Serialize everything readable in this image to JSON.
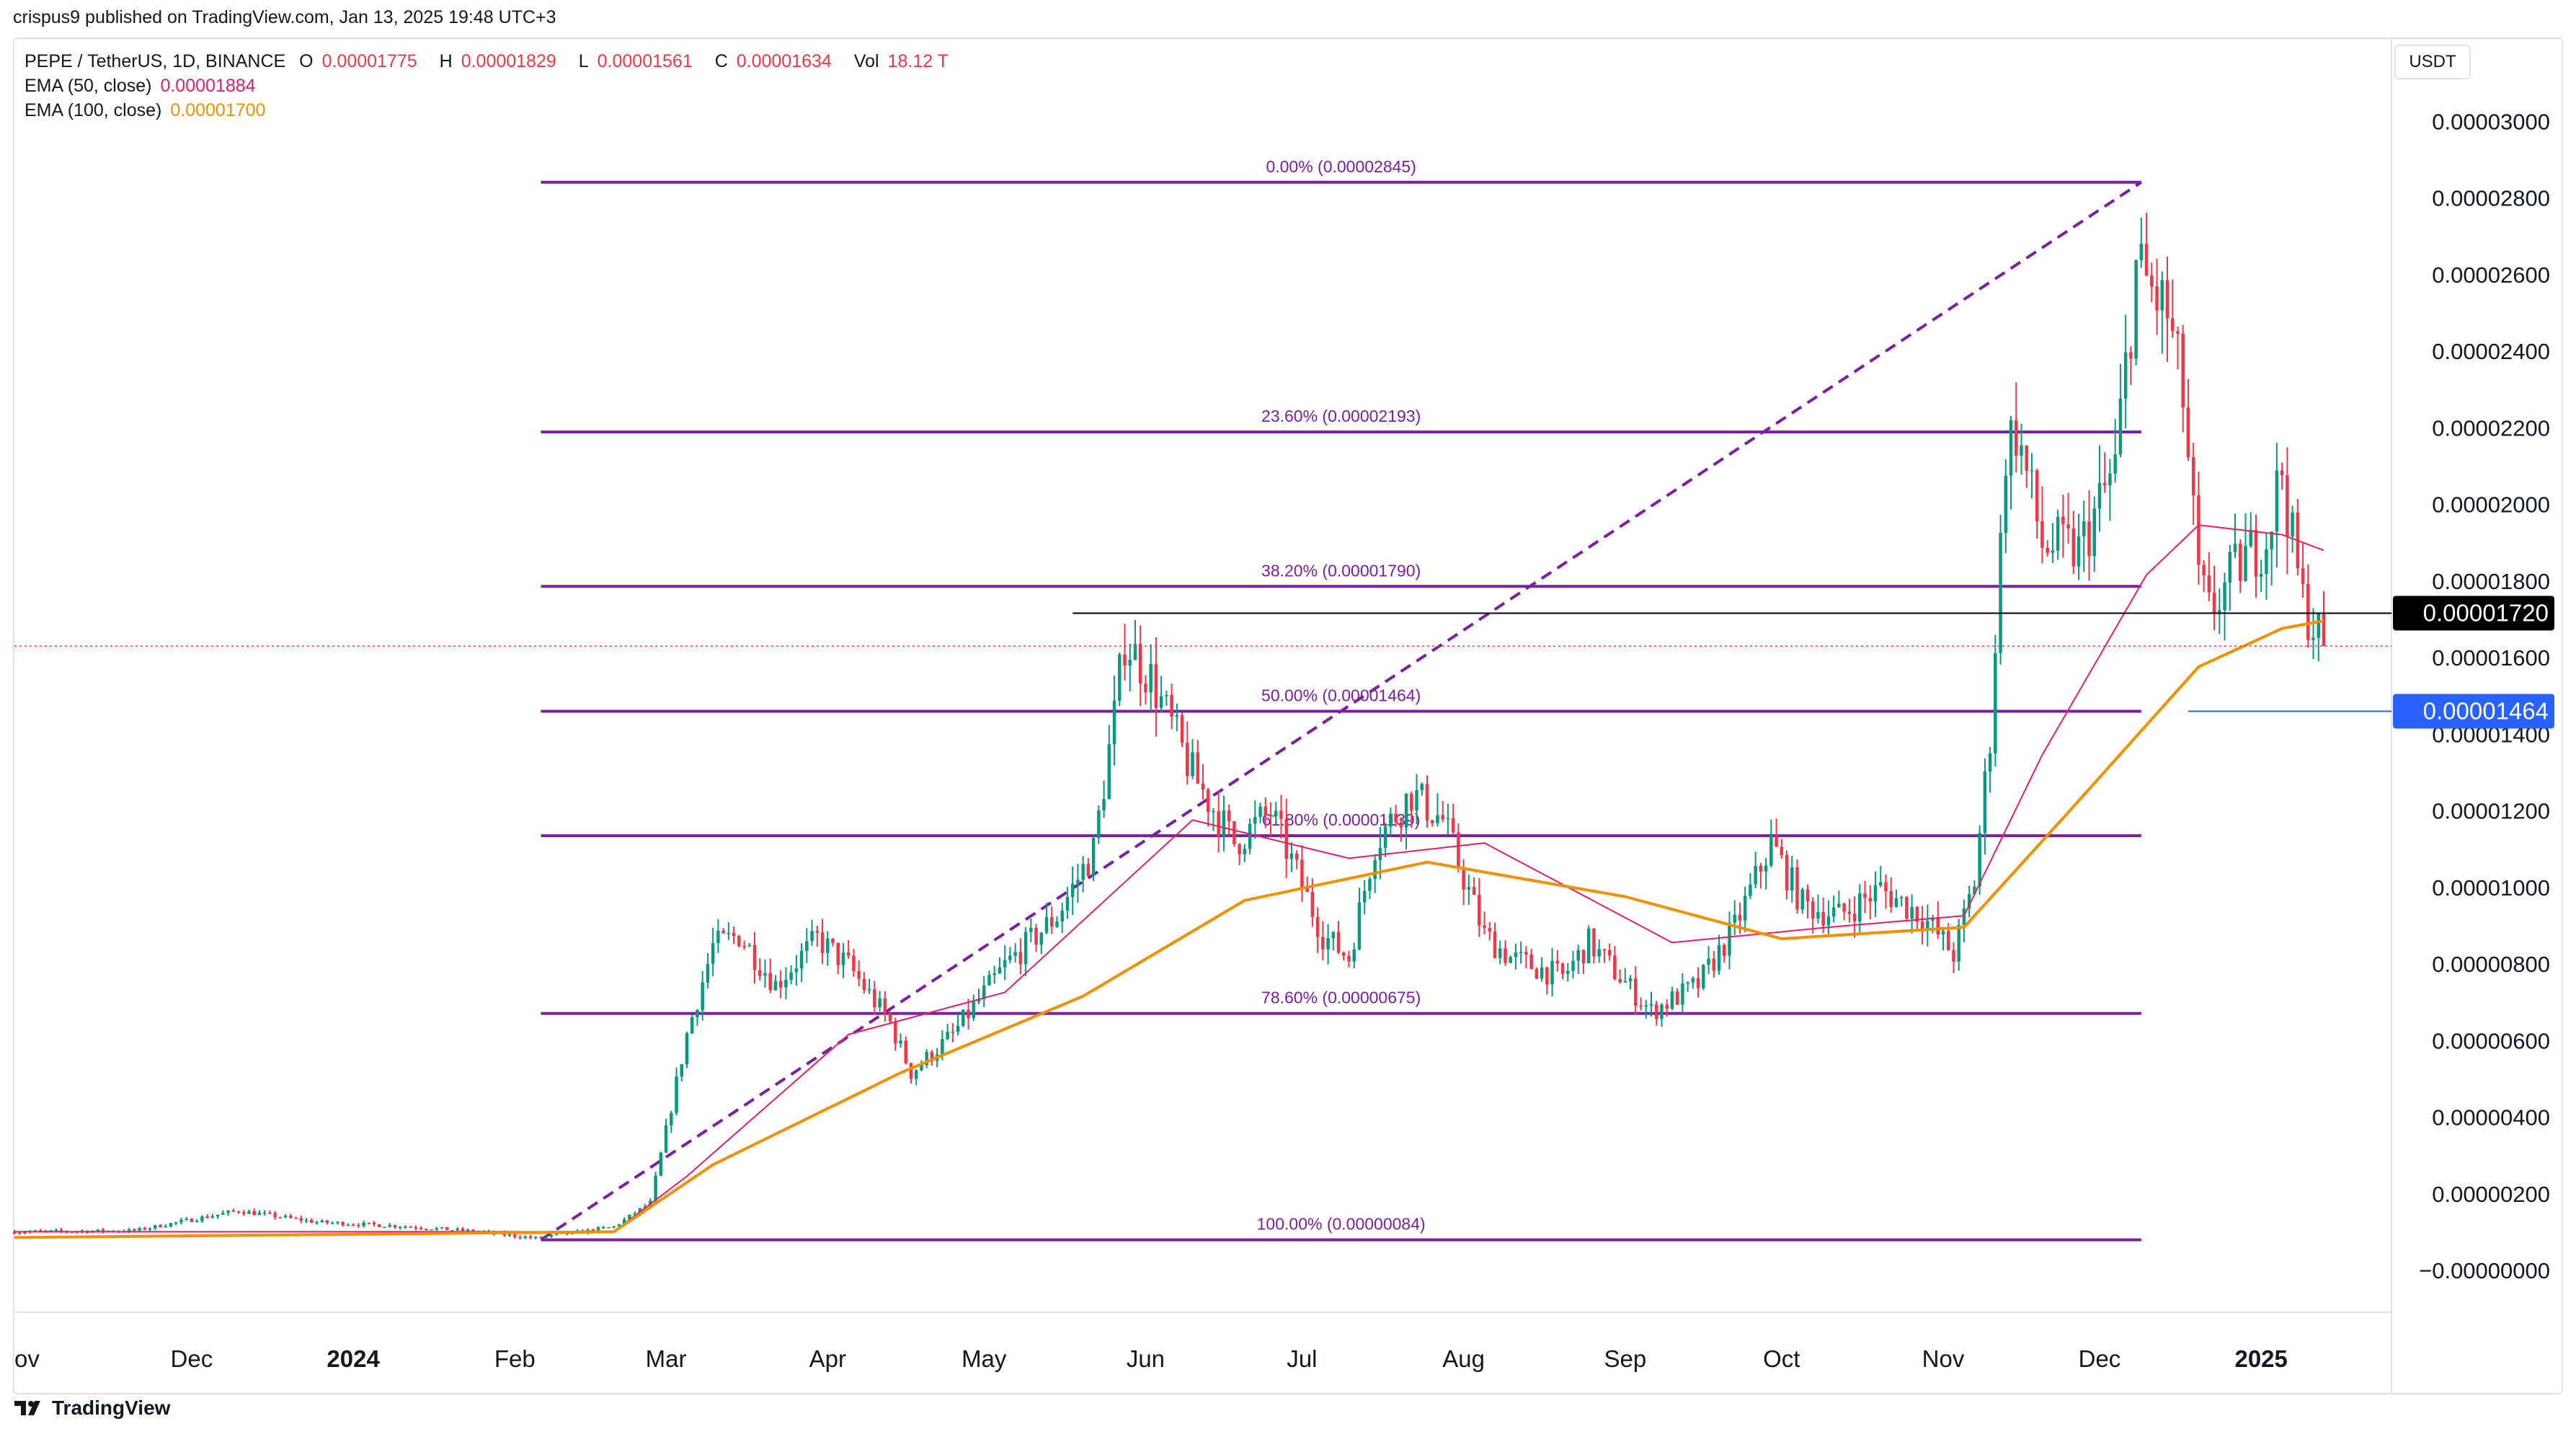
{
  "header": {
    "published": "crispus9 published on TradingView.com, Jan 13, 2025 19:48 UTC+3"
  },
  "legend": {
    "symbol": "PEPE / TetherUS, 1D, BINANCE",
    "o_label": "O",
    "o_value": "0.00001775",
    "h_label": "H",
    "h_value": "0.00001829",
    "l_label": "L",
    "l_value": "0.00001561",
    "c_label": "C",
    "c_value": "0.00001634",
    "vol_label": "Vol",
    "vol_value": "18.12 T",
    "ema50_label": "EMA (50, close)",
    "ema50_value": "0.00001884",
    "ema100_label": "EMA (100, close)",
    "ema100_value": "0.00001700"
  },
  "currency_label": "USDT",
  "footer": {
    "brand": "TradingView"
  },
  "colors": {
    "up": "#089981",
    "down": "#f23645",
    "fib": "#7b1fa2",
    "ema50": "#e91e63",
    "ema100": "#f29100",
    "price_tag": "#000000",
    "fib_tag": "#2962ff"
  },
  "chart_data": {
    "type": "candlestick",
    "title": "PEPE / TetherUS, 1D, BINANCE",
    "ylim": [
      -1.05e-06,
      3.11e-05
    ],
    "y_ticks": [
      "−0.00000000",
      "0.00000200",
      "0.00000400",
      "0.00000600",
      "0.00000800",
      "0.00001000",
      "0.00001200",
      "0.00001400",
      "0.00001600",
      "0.00001800",
      "0.00002000",
      "0.00002200",
      "0.00002400",
      "0.00002600",
      "0.00002800",
      "0.00003000"
    ],
    "y_tick_values": [
      0,
      2e-06,
      4e-06,
      6e-06,
      8e-06,
      1e-05,
      1.2e-05,
      1.4e-05,
      1.6e-05,
      1.8e-05,
      2e-05,
      2.2e-05,
      2.4e-05,
      2.6e-05,
      2.8e-05,
      3e-05
    ],
    "x_start": "2023-10-28",
    "x_end": "2025-01-26",
    "x_ticks": [
      {
        "label": "Nov",
        "date": "2023-11-01",
        "bold": false
      },
      {
        "label": "Dec",
        "date": "2023-12-01",
        "bold": false
      },
      {
        "label": "2024",
        "date": "2024-01-01",
        "bold": true
      },
      {
        "label": "Feb",
        "date": "2024-02-01",
        "bold": false
      },
      {
        "label": "Mar",
        "date": "2024-03-01",
        "bold": false
      },
      {
        "label": "Apr",
        "date": "2024-04-01",
        "bold": false
      },
      {
        "label": "May",
        "date": "2024-05-01",
        "bold": false
      },
      {
        "label": "Jun",
        "date": "2024-06-01",
        "bold": false
      },
      {
        "label": "Jul",
        "date": "2024-07-01",
        "bold": false
      },
      {
        "label": "Aug",
        "date": "2024-08-01",
        "bold": false
      },
      {
        "label": "Sep",
        "date": "2024-09-01",
        "bold": false
      },
      {
        "label": "Oct",
        "date": "2024-10-01",
        "bold": false
      },
      {
        "label": "Nov",
        "date": "2024-11-01",
        "bold": false
      },
      {
        "label": "Dec",
        "date": "2024-12-01",
        "bold": false
      },
      {
        "label": "2025",
        "date": "2025-01-01",
        "bold": true
      }
    ],
    "x_ticks_visible_text": [
      "ov",
      "Dec",
      "2024",
      "Feb",
      "Mar",
      "Apr",
      "May",
      "Jun",
      "Jul",
      "Aug",
      "Sep",
      "Oct",
      "Nov",
      "Dec",
      "2025"
    ],
    "price_anchors": [
      [
        "2023-10-28",
        1.05e-06
      ],
      [
        "2023-11-20",
        1.08e-06
      ],
      [
        "2023-12-10",
        1.6e-06
      ],
      [
        "2023-12-25",
        1.3e-06
      ],
      [
        "2024-01-10",
        1.2e-06
      ],
      [
        "2024-01-25",
        1.05e-06
      ],
      [
        "2024-02-05",
        8.8e-07
      ],
      [
        "2024-02-20",
        1.18e-06
      ],
      [
        "2024-02-27",
        1.8e-06
      ],
      [
        "2024-03-05",
        6.2e-06
      ],
      [
        "2024-03-10",
        8.5e-06
      ],
      [
        "2024-03-15",
        8.8e-06
      ],
      [
        "2024-03-22",
        7.5e-06
      ],
      [
        "2024-03-30",
        8.7e-06
      ],
      [
        "2024-04-05",
        8e-06
      ],
      [
        "2024-04-13",
        6.5e-06
      ],
      [
        "2024-04-17",
        5.2e-06
      ],
      [
        "2024-04-25",
        6.2e-06
      ],
      [
        "2024-05-05",
        8e-06
      ],
      [
        "2024-05-15",
        9.3e-06
      ],
      [
        "2024-05-22",
        1.1e-05
      ],
      [
        "2024-05-26",
        1.45e-05
      ],
      [
        "2024-05-28",
        1.65e-05
      ],
      [
        "2024-06-02",
        1.55e-05
      ],
      [
        "2024-06-10",
        1.3e-05
      ],
      [
        "2024-06-18",
        1.12e-05
      ],
      [
        "2024-06-25",
        1.2e-05
      ],
      [
        "2024-07-05",
        8.8e-06
      ],
      [
        "2024-07-10",
        8.2e-06
      ],
      [
        "2024-07-15",
        1.12e-05
      ],
      [
        "2024-07-22",
        1.25e-05
      ],
      [
        "2024-07-28",
        1.18e-05
      ],
      [
        "2024-08-05",
        8.8e-06
      ],
      [
        "2024-08-10",
        8.2e-06
      ],
      [
        "2024-08-20",
        7.7e-06
      ],
      [
        "2024-08-25",
        8.6e-06
      ],
      [
        "2024-09-06",
        6.8e-06
      ],
      [
        "2024-09-15",
        7.5e-06
      ],
      [
        "2024-09-22",
        9e-06
      ],
      [
        "2024-09-29",
        1.12e-05
      ],
      [
        "2024-10-05",
        9.6e-06
      ],
      [
        "2024-10-12",
        9.3e-06
      ],
      [
        "2024-10-20",
        1e-05
      ],
      [
        "2024-10-28",
        9.3e-06
      ],
      [
        "2024-11-03",
        8.3e-06
      ],
      [
        "2024-11-07",
        1.02e-05
      ],
      [
        "2024-11-10",
        1.4e-05
      ],
      [
        "2024-11-13",
        2.15e-05
      ],
      [
        "2024-11-15",
        2.2e-05
      ],
      [
        "2024-11-20",
        1.9e-05
      ],
      [
        "2024-11-27",
        1.88e-05
      ],
      [
        "2024-12-04",
        2.1e-05
      ],
      [
        "2024-12-08",
        2.62e-05
      ],
      [
        "2024-12-10",
        2.58e-05
      ],
      [
        "2024-12-14",
        2.5e-05
      ],
      [
        "2024-12-17",
        2.28e-05
      ],
      [
        "2024-12-20",
        1.8e-05
      ],
      [
        "2024-12-22",
        1.72e-05
      ],
      [
        "2024-12-28",
        1.85e-05
      ],
      [
        "2025-01-02",
        1.92e-05
      ],
      [
        "2025-01-05",
        2.1e-05
      ],
      [
        "2025-01-07",
        1.9e-05
      ],
      [
        "2025-01-09",
        1.75e-05
      ],
      [
        "2025-01-13",
        1.634e-05
      ]
    ],
    "ema50_anchors": [
      [
        "2023-10-28",
        1.05e-06
      ],
      [
        "2024-02-20",
        1.05e-06
      ],
      [
        "2024-03-05",
        2.5e-06
      ],
      [
        "2024-04-05",
        6.2e-06
      ],
      [
        "2024-05-05",
        7.3e-06
      ],
      [
        "2024-06-10",
        1.18e-05
      ],
      [
        "2024-07-10",
        1.08e-05
      ],
      [
        "2024-08-05",
        1.12e-05
      ],
      [
        "2024-09-10",
        8.6e-06
      ],
      [
        "2024-10-10",
        9e-06
      ],
      [
        "2024-11-05",
        9.3e-06
      ],
      [
        "2024-11-20",
        1.35e-05
      ],
      [
        "2024-12-10",
        1.82e-05
      ],
      [
        "2024-12-20",
        1.95e-05
      ],
      [
        "2025-01-05",
        1.925e-05
      ],
      [
        "2025-01-13",
        1.884e-05
      ]
    ],
    "ema100_anchors": [
      [
        "2023-10-28",
        9e-07
      ],
      [
        "2024-02-20",
        1.05e-06
      ],
      [
        "2024-03-10",
        2.8e-06
      ],
      [
        "2024-04-15",
        5.2e-06
      ],
      [
        "2024-05-20",
        7.2e-06
      ],
      [
        "2024-06-20",
        9.7e-06
      ],
      [
        "2024-07-25",
        1.07e-05
      ],
      [
        "2024-09-01",
        9.8e-06
      ],
      [
        "2024-10-01",
        8.7e-06
      ],
      [
        "2024-11-05",
        9e-06
      ],
      [
        "2024-11-25",
        1.2e-05
      ],
      [
        "2024-12-20",
        1.58e-05
      ],
      [
        "2025-01-05",
        1.68e-05
      ],
      [
        "2025-01-13",
        1.7e-05
      ]
    ],
    "fibonacci": {
      "start_date": "2024-02-06",
      "end_date": "2024-12-09",
      "levels": [
        {
          "label": "0.00% (0.00002845)",
          "value": 2.845e-05
        },
        {
          "label": "23.60% (0.00002193)",
          "value": 2.193e-05
        },
        {
          "label": "38.20% (0.00001790)",
          "value": 1.79e-05
        },
        {
          "label": "50.00% (0.00001464)",
          "value": 1.464e-05
        },
        {
          "label": "61.80% (0.00001139)",
          "value": 1.139e-05
        },
        {
          "label": "78.60% (0.00000675)",
          "value": 6.75e-06
        },
        {
          "label": "100.00% (0.00000084)",
          "value": 8.4e-07
        }
      ],
      "trend_line": {
        "from": [
          "2024-02-06",
          8.4e-07
        ],
        "to": [
          "2024-12-09",
          2.845e-05
        ]
      }
    },
    "horizontal_line": {
      "value": 1.72e-05,
      "from_date": "2024-05-18"
    },
    "price_tags": [
      {
        "label": "0.00001720",
        "value": 1.72e-05,
        "style": "black"
      },
      {
        "label": "0.00001464",
        "value": 1.464e-05,
        "style": "blue"
      }
    ],
    "last_price": 1.634e-05
  }
}
